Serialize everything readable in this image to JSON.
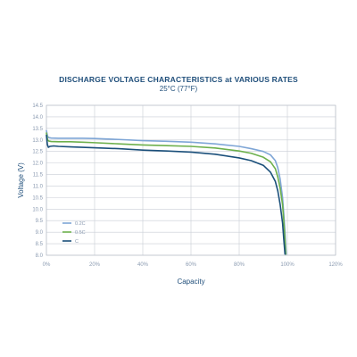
{
  "chart_data": {
    "type": "line",
    "title": "DISCHARGE VOLTAGE CHARACTERISTICS at VARIOUS RATES",
    "subtitle": "25°C (77°F)",
    "xlabel": "Capacity",
    "ylabel": "Voltage (V)",
    "xlim": [
      0,
      120
    ],
    "ylim": [
      8.0,
      14.5
    ],
    "x_ticks": [
      "0%",
      "20%",
      "40%",
      "60%",
      "80%",
      "100%",
      "120%"
    ],
    "y_ticks": [
      "8.0",
      "8.5",
      "9.0",
      "9.5",
      "10.0",
      "10.5",
      "11.0",
      "11.5",
      "12.0",
      "12.5",
      "13.0",
      "13.5",
      "14.0",
      "14.5"
    ],
    "grid": true,
    "legend_position": "bottom-left",
    "series": [
      {
        "name": "0.2C",
        "color": "#7fa6d6",
        "x": [
          0,
          0.5,
          1,
          2,
          5,
          10,
          15,
          20,
          30,
          40,
          50,
          60,
          70,
          80,
          85,
          90,
          93,
          95,
          96,
          97,
          98,
          98.5,
          99,
          99.3,
          99.5
        ],
        "y": [
          13.4,
          13.15,
          13.1,
          13.08,
          13.07,
          13.07,
          13.07,
          13.06,
          13.02,
          12.97,
          12.94,
          12.9,
          12.83,
          12.72,
          12.62,
          12.5,
          12.35,
          12.1,
          11.8,
          11.3,
          10.5,
          9.8,
          9.0,
          8.4,
          8.05
        ]
      },
      {
        "name": "0.5C",
        "color": "#6db04c",
        "x": [
          0,
          0.5,
          1,
          2,
          5,
          10,
          15,
          20,
          30,
          40,
          50,
          60,
          70,
          80,
          85,
          90,
          93,
          95,
          96,
          97,
          98,
          98.5,
          99,
          99.3
        ],
        "y": [
          13.3,
          13.0,
          12.95,
          12.93,
          12.92,
          12.92,
          12.9,
          12.88,
          12.83,
          12.78,
          12.75,
          12.72,
          12.65,
          12.52,
          12.42,
          12.25,
          12.05,
          11.75,
          11.4,
          10.9,
          10.2,
          9.5,
          8.7,
          8.05
        ]
      },
      {
        "name": "C",
        "color": "#1a4f7a",
        "x": [
          0,
          0.4,
          0.8,
          1.5,
          3,
          5,
          10,
          15,
          20,
          30,
          40,
          50,
          60,
          70,
          80,
          85,
          90,
          93,
          95,
          96,
          97,
          98,
          98.5,
          99
        ],
        "y": [
          13.2,
          12.8,
          12.68,
          12.72,
          12.74,
          12.72,
          12.7,
          12.68,
          12.66,
          12.62,
          12.56,
          12.52,
          12.47,
          12.38,
          12.22,
          12.1,
          11.9,
          11.6,
          11.2,
          10.8,
          10.2,
          9.4,
          8.7,
          8.05
        ]
      }
    ]
  }
}
